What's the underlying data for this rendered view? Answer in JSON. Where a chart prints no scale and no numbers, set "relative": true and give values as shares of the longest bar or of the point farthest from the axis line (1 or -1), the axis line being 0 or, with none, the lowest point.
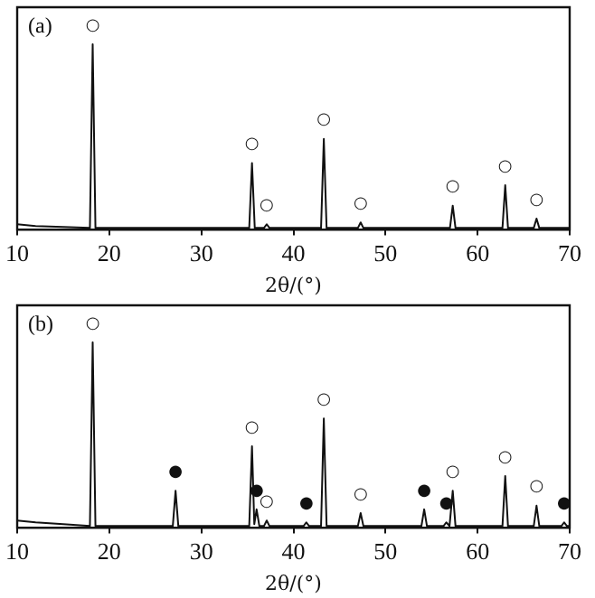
{
  "chart_data": [
    {
      "type": "line",
      "title": "(a)",
      "xlabel": "2θ/(°)",
      "relative": true,
      "marker": "none",
      "color": "#111111",
      "xlim": [
        10,
        70
      ],
      "xticks": [
        10,
        20,
        30,
        40,
        50,
        60,
        70
      ],
      "x": [
        10,
        12,
        15,
        17.9,
        18.2,
        18.5,
        25,
        35.2,
        35.5,
        35.8,
        36.8,
        37.1,
        37.4,
        43.0,
        43.3,
        43.6,
        47.0,
        47.3,
        47.6,
        50,
        57.0,
        57.3,
        57.6,
        62.7,
        63.0,
        63.3,
        66.1,
        66.4,
        66.7,
        70
      ],
      "values": [
        0.03,
        0.02,
        0.015,
        0.01,
        1,
        0.01,
        0.01,
        0.01,
        0.36,
        0.01,
        0.01,
        0.03,
        0.01,
        0.01,
        0.49,
        0.01,
        0.01,
        0.04,
        0.01,
        0.01,
        0.01,
        0.13,
        0.01,
        0.01,
        0.24,
        0.01,
        0.01,
        0.06,
        0.01,
        0.01
      ],
      "annotations": [
        {
          "text": "○",
          "x": 18.2,
          "y": 1
        },
        {
          "text": "○",
          "x": 35.5,
          "y": 0.36
        },
        {
          "text": "○",
          "x": 37.1,
          "y": 0.03
        },
        {
          "text": "○",
          "x": 43.3,
          "y": 0.49
        },
        {
          "text": "○",
          "x": 47.3,
          "y": 0.04
        },
        {
          "text": "○",
          "x": 57.3,
          "y": 0.13
        },
        {
          "text": "○",
          "x": 63.0,
          "y": 0.24
        },
        {
          "text": "○",
          "x": 66.4,
          "y": 0.06
        }
      ]
    },
    {
      "type": "line",
      "title": "(b)",
      "xlabel": "2θ/(°)",
      "relative": true,
      "marker": "none",
      "color": "#111111",
      "xlim": [
        10,
        70
      ],
      "xticks": [
        10,
        20,
        30,
        40,
        50,
        60,
        70
      ],
      "x": [
        10,
        12,
        15,
        17.9,
        18.2,
        18.5,
        26.9,
        27.2,
        27.5,
        35.2,
        35.5,
        35.75,
        36.0,
        36.3,
        36.8,
        37.1,
        37.4,
        41.1,
        41.4,
        41.7,
        43.0,
        43.3,
        43.6,
        47.0,
        47.3,
        47.6,
        53.9,
        54.2,
        54.5,
        56.3,
        56.6,
        56.95,
        57.3,
        57.6,
        62.7,
        63.0,
        63.3,
        66.1,
        66.4,
        66.7,
        69.1,
        69.4,
        69.7,
        70
      ],
      "values": [
        0.04,
        0.03,
        0.02,
        0.01,
        1,
        0.01,
        0.01,
        0.2,
        0.01,
        0.01,
        0.44,
        0.02,
        0.1,
        0.01,
        0.01,
        0.04,
        0.01,
        0.01,
        0.03,
        0.01,
        0.01,
        0.59,
        0.01,
        0.01,
        0.08,
        0.01,
        0.01,
        0.1,
        0.01,
        0.01,
        0.03,
        0.01,
        0.2,
        0.01,
        0.01,
        0.28,
        0.01,
        0.01,
        0.12,
        0.01,
        0.01,
        0.03,
        0.01,
        0.01
      ],
      "annotations": [
        {
          "text": "○",
          "x": 18.2,
          "y": 1
        },
        {
          "text": "●",
          "x": 27.2,
          "y": 0.2
        },
        {
          "text": "○",
          "x": 35.5,
          "y": 0.44
        },
        {
          "text": "●",
          "x": 36.0,
          "y": 0.1
        },
        {
          "text": "○",
          "x": 37.1,
          "y": 0.04
        },
        {
          "text": "●",
          "x": 41.4,
          "y": 0.03
        },
        {
          "text": "○",
          "x": 43.3,
          "y": 0.59
        },
        {
          "text": "○",
          "x": 47.3,
          "y": 0.08
        },
        {
          "text": "●",
          "x": 54.2,
          "y": 0.1
        },
        {
          "text": "●",
          "x": 56.6,
          "y": 0.03
        },
        {
          "text": "○",
          "x": 57.3,
          "y": 0.2
        },
        {
          "text": "○",
          "x": 63.0,
          "y": 0.28
        },
        {
          "text": "○",
          "x": 66.4,
          "y": 0.12
        },
        {
          "text": "●",
          "x": 69.4,
          "y": 0.03
        }
      ]
    }
  ]
}
